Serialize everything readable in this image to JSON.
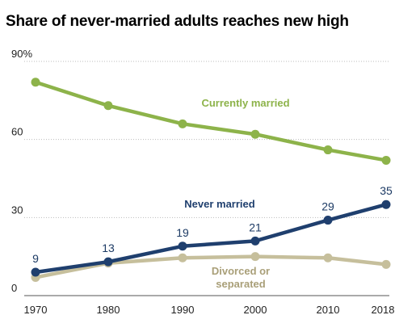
{
  "chart_data": {
    "type": "line",
    "title": "Share of never-married adults reaches new high",
    "x": [
      1970,
      1980,
      1990,
      2000,
      2010,
      2018
    ],
    "x_tick_labels": [
      "1970",
      "1980",
      "1990",
      "2000",
      "2010",
      "2018"
    ],
    "y_ticks": [
      {
        "value": 0,
        "label": "0"
      },
      {
        "value": 30,
        "label": "30"
      },
      {
        "value": 60,
        "label": "60"
      },
      {
        "value": 90,
        "label": "90%"
      }
    ],
    "ylim": [
      0,
      90
    ],
    "grid": "dotted horizontal",
    "series": [
      {
        "name": "Currently married",
        "color": "#8db34a",
        "values": [
          82,
          73,
          66,
          62,
          56,
          52
        ],
        "data_labels": [
          "",
          "",
          "",
          "",
          "",
          ""
        ]
      },
      {
        "name": "Never married",
        "color": "#1f3f6e",
        "values": [
          9,
          13,
          19,
          21,
          29,
          35
        ],
        "data_labels": [
          "9",
          "13",
          "19",
          "21",
          "29",
          "35"
        ]
      },
      {
        "name": "Divorced or separated",
        "name_lines": [
          "Divorced or",
          "separated"
        ],
        "color": "#c6bf9c",
        "values": [
          7,
          12.5,
          14.5,
          15,
          14.5,
          12
        ],
        "data_labels": [
          "",
          "",
          "",
          "",
          "",
          ""
        ]
      }
    ]
  }
}
